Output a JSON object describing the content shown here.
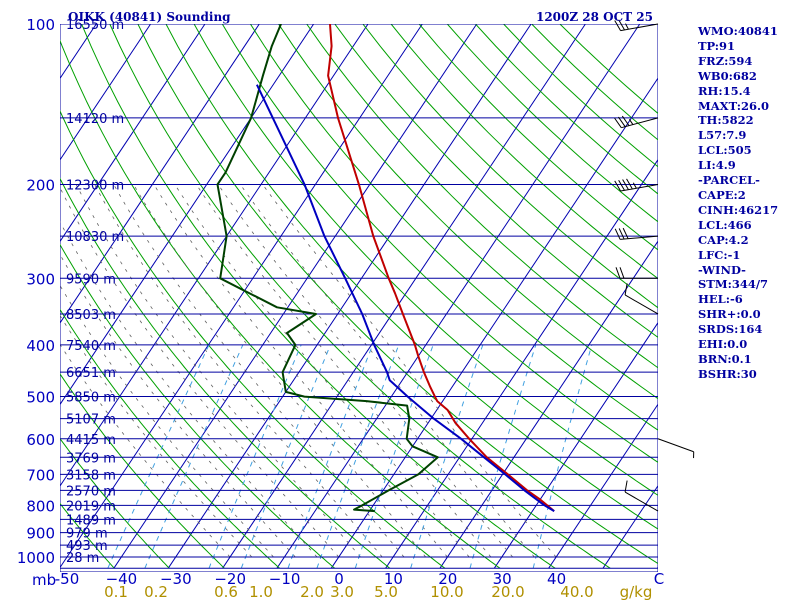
{
  "header": {
    "station": "OIKK (40841) Sounding",
    "time": "1200Z 28 OCT 25"
  },
  "indices": [
    "WMO:40841",
    "TP:91",
    "FRZ:594",
    "WB0:682",
    "RH:15.4",
    "MAXT:26.0",
    "TH:5822",
    "L57:7.9",
    "LCL:505",
    "LI:4.9",
    "-PARCEL-",
    "CAPE:2",
    "CINH:46217",
    "LCL:466",
    "CAP:4.2",
    "LFC:-1",
    "-WIND-",
    "STM:344/7",
    "HEL:-6",
    "SHR+:0.0",
    "SRDS:164",
    "EHI:0.0",
    "BRN:0.1",
    "BSHR:30"
  ],
  "colors": {
    "isobar": "#0000a0",
    "isotherm": "#0000b0",
    "dry_adiabat": "#00a000",
    "moist_adiabat": "#606060",
    "mixing_ratio": "#40a0e0",
    "temperature": "#c00000",
    "dewpoint": "#004000",
    "parcel": "#0000c0"
  },
  "chart_data": {
    "type": "line",
    "title": "OIKK (40841) Sounding",
    "pressure_levels": [
      100,
      200,
      300,
      400,
      500,
      600,
      700,
      800,
      900,
      1000
    ],
    "pressure_level_labels": [
      "100",
      "200",
      "300",
      "400",
      "500",
      "600",
      "700",
      "800",
      "900",
      "1000"
    ],
    "pressure_unit_label": "mb",
    "temperature_ticks": [
      -50,
      -40,
      -30,
      -20,
      -10,
      0,
      10,
      20,
      30,
      40
    ],
    "temperature_tick_labels": [
      "-50",
      "−40",
      "−30",
      "−20",
      "−10",
      "0",
      "10",
      "20",
      "30",
      "40"
    ],
    "temperature_unit_label": "C",
    "mixing_ratio_ticks": [
      0.1,
      0.2,
      0.6,
      1.0,
      2.0,
      3.0,
      5.0,
      10.0,
      20.0,
      40.0
    ],
    "mixing_ratio_labels": [
      "0.1",
      "0.2",
      "0.6",
      "1.0",
      "2.0",
      "3.0",
      "5.0",
      "10.0",
      "20.0",
      "40.0"
    ],
    "mixing_ratio_unit_label": "g/kg",
    "height_labels": [
      {
        "p": 100,
        "label": "16550 m"
      },
      {
        "p": 150,
        "label": "14120 m"
      },
      {
        "p": 200,
        "label": "12300 m"
      },
      {
        "p": 250,
        "label": "10830 m"
      },
      {
        "p": 300,
        "label": "9590 m"
      },
      {
        "p": 350,
        "label": "8503 m"
      },
      {
        "p": 400,
        "label": "7540 m"
      },
      {
        "p": 450,
        "label": "6651 m"
      },
      {
        "p": 500,
        "label": "5850 m"
      },
      {
        "p": 550,
        "label": "5107 m"
      },
      {
        "p": 600,
        "label": "4415 m"
      },
      {
        "p": 650,
        "label": "3769 m"
      },
      {
        "p": 700,
        "label": "3158 m"
      },
      {
        "p": 750,
        "label": "2570 m"
      },
      {
        "p": 800,
        "label": "2019 m"
      },
      {
        "p": 850,
        "label": "1489 m"
      },
      {
        "p": 900,
        "label": "979 m"
      },
      {
        "p": 950,
        "label": "493 m"
      },
      {
        "p": 1000,
        "label": "28 m"
      }
    ],
    "series": [
      {
        "key": "temperature",
        "points": [
          {
            "p": 820,
            "t": 34
          },
          {
            "p": 800,
            "t": 32
          },
          {
            "p": 780,
            "t": 30
          },
          {
            "p": 750,
            "t": 26.5
          },
          {
            "p": 700,
            "t": 21
          },
          {
            "p": 650,
            "t": 15
          },
          {
            "p": 600,
            "t": 9.5
          },
          {
            "p": 560,
            "t": 5
          },
          {
            "p": 530,
            "t": 2
          },
          {
            "p": 510,
            "t": -1
          },
          {
            "p": 500,
            "t": -2
          },
          {
            "p": 480,
            "t": -4
          },
          {
            "p": 450,
            "t": -7
          },
          {
            "p": 420,
            "t": -10
          },
          {
            "p": 400,
            "t": -12
          },
          {
            "p": 350,
            "t": -18
          },
          {
            "p": 320,
            "t": -22
          },
          {
            "p": 300,
            "t": -25
          },
          {
            "p": 250,
            "t": -33
          },
          {
            "p": 200,
            "t": -42
          },
          {
            "p": 150,
            "t": -54
          },
          {
            "p": 125,
            "t": -61
          },
          {
            "p": 110,
            "t": -64
          },
          {
            "p": 100,
            "t": -67
          }
        ]
      },
      {
        "key": "dewpoint",
        "points": [
          {
            "p": 820,
            "t": 1
          },
          {
            "p": 815,
            "t": -3
          },
          {
            "p": 800,
            "t": -2
          },
          {
            "p": 750,
            "t": 1
          },
          {
            "p": 700,
            "t": 4.5
          },
          {
            "p": 650,
            "t": 6
          },
          {
            "p": 620,
            "t": 0
          },
          {
            "p": 600,
            "t": -2
          },
          {
            "p": 550,
            "t": -4
          },
          {
            "p": 520,
            "t": -6
          },
          {
            "p": 510,
            "t": -14
          },
          {
            "p": 500,
            "t": -26
          },
          {
            "p": 490,
            "t": -30
          },
          {
            "p": 450,
            "t": -33
          },
          {
            "p": 400,
            "t": -34
          },
          {
            "p": 380,
            "t": -37
          },
          {
            "p": 350,
            "t": -34
          },
          {
            "p": 340,
            "t": -42
          },
          {
            "p": 300,
            "t": -56
          },
          {
            "p": 250,
            "t": -60
          },
          {
            "p": 200,
            "t": -68
          },
          {
            "p": 190,
            "t": -68
          },
          {
            "p": 150,
            "t": -70
          },
          {
            "p": 125,
            "t": -73
          },
          {
            "p": 110,
            "t": -75
          },
          {
            "p": 100,
            "t": -76
          }
        ]
      },
      {
        "key": "parcel",
        "points": [
          {
            "p": 820,
            "t": 34
          },
          {
            "p": 800,
            "t": 31.5
          },
          {
            "p": 750,
            "t": 26
          },
          {
            "p": 700,
            "t": 20.5
          },
          {
            "p": 650,
            "t": 14.5
          },
          {
            "p": 600,
            "t": 8
          },
          {
            "p": 550,
            "t": 0.5
          },
          {
            "p": 500,
            "t": -7
          },
          {
            "p": 466,
            "t": -12.3
          },
          {
            "p": 450,
            "t": -13.8
          },
          {
            "p": 400,
            "t": -19.5
          },
          {
            "p": 350,
            "t": -25.5
          },
          {
            "p": 300,
            "t": -33
          },
          {
            "p": 250,
            "t": -42
          },
          {
            "p": 200,
            "t": -52
          },
          {
            "p": 150,
            "t": -66
          },
          {
            "p": 130,
            "t": -73
          }
        ]
      }
    ],
    "wind_barbs": [
      {
        "p": 100,
        "dir": 260,
        "spd": 25
      },
      {
        "p": 150,
        "dir": 255,
        "spd": 35
      },
      {
        "p": 200,
        "dir": 260,
        "spd": 45
      },
      {
        "p": 250,
        "dir": 265,
        "spd": 30
      },
      {
        "p": 300,
        "dir": 270,
        "spd": 20
      },
      {
        "p": 350,
        "dir": 300,
        "spd": 10
      },
      {
        "p": 600,
        "dir": 110,
        "spd": 5
      },
      {
        "p": 820,
        "dir": 300,
        "spd": 10
      }
    ]
  }
}
